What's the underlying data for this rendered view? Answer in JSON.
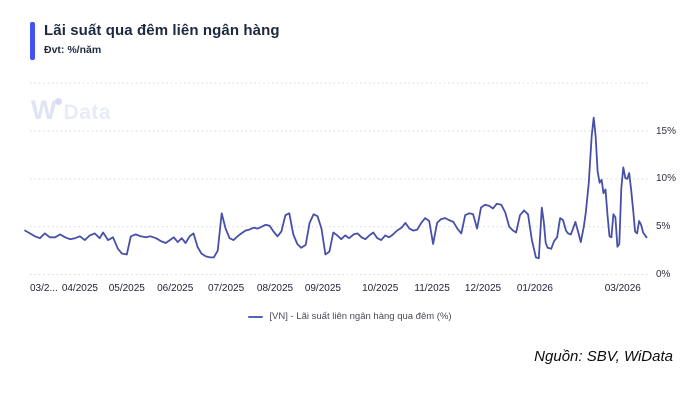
{
  "header": {
    "title": "Lãi suất qua đêm liên ngân hàng",
    "unit": "Đvt: %/năm"
  },
  "watermark": {
    "part1": "W",
    "part2": "Data"
  },
  "legend": {
    "label": "[VN] - Lãi suất liên ngân hàng qua đêm (%)"
  },
  "footer": {
    "source": "Nguồn: SBV, WiData"
  },
  "colors": {
    "accent": "#4154f1",
    "line": "#4750a8",
    "grid": "#d9d9de",
    "legend_marker": "#5560b8"
  },
  "chart_data": {
    "type": "line",
    "title": "Lãi suất qua đêm liên ngân hàng",
    "unit": "%/năm",
    "legend_position": "bottom",
    "grid": "horizontal-dotted",
    "x_axis": {
      "unit": "months since 03/2025",
      "range": [
        -0.15,
        12.55
      ],
      "ticks": [
        {
          "t": 0.0,
          "label": "03/2...",
          "align": "left"
        },
        {
          "t": 1.01,
          "label": "04/2025"
        },
        {
          "t": 1.96,
          "label": "05/2025"
        },
        {
          "t": 2.94,
          "label": "06/2025"
        },
        {
          "t": 3.97,
          "label": "07/2025"
        },
        {
          "t": 4.96,
          "label": "08/2025"
        },
        {
          "t": 5.93,
          "label": "09/2025"
        },
        {
          "t": 7.09,
          "label": "10/2025"
        },
        {
          "t": 8.14,
          "label": "11/2025"
        },
        {
          "t": 9.17,
          "label": "12/2025"
        },
        {
          "t": 10.22,
          "label": "01/2026"
        },
        {
          "t": 12.0,
          "label": "03/2026"
        }
      ]
    },
    "y_axis": {
      "lim": [
        0,
        20
      ],
      "gridlines": [
        0,
        5,
        10,
        15,
        20
      ],
      "ticks": [
        {
          "v": 0,
          "label": "0%"
        },
        {
          "v": 5,
          "label": "5%"
        },
        {
          "v": 10,
          "label": "10%"
        },
        {
          "v": 15,
          "label": "15%"
        }
      ]
    },
    "series": [
      {
        "name": "[VN] - Lãi suất liên ngân hàng qua đêm (%)",
        "color": "#4750a8",
        "points": [
          [
            -0.1,
            4.6
          ],
          [
            0.0,
            4.3
          ],
          [
            0.1,
            4.0
          ],
          [
            0.2,
            3.8
          ],
          [
            0.3,
            4.3
          ],
          [
            0.4,
            3.9
          ],
          [
            0.51,
            3.9
          ],
          [
            0.61,
            4.2
          ],
          [
            0.71,
            3.9
          ],
          [
            0.81,
            3.7
          ],
          [
            0.91,
            3.8
          ],
          [
            1.01,
            4.0
          ],
          [
            1.11,
            3.6
          ],
          [
            1.21,
            4.1
          ],
          [
            1.31,
            4.3
          ],
          [
            1.41,
            3.8
          ],
          [
            1.48,
            4.4
          ],
          [
            1.58,
            3.6
          ],
          [
            1.68,
            3.9
          ],
          [
            1.78,
            2.7
          ],
          [
            1.86,
            2.2
          ],
          [
            1.96,
            2.1
          ],
          [
            2.04,
            4.0
          ],
          [
            2.14,
            4.2
          ],
          [
            2.24,
            4.0
          ],
          [
            2.34,
            3.9
          ],
          [
            2.44,
            4.0
          ],
          [
            2.55,
            3.8
          ],
          [
            2.65,
            3.5
          ],
          [
            2.75,
            3.3
          ],
          [
            2.83,
            3.6
          ],
          [
            2.91,
            3.9
          ],
          [
            2.99,
            3.4
          ],
          [
            3.07,
            3.8
          ],
          [
            3.15,
            3.3
          ],
          [
            3.23,
            4.0
          ],
          [
            3.31,
            4.3
          ],
          [
            3.39,
            2.9
          ],
          [
            3.47,
            2.2
          ],
          [
            3.56,
            1.9
          ],
          [
            3.64,
            1.8
          ],
          [
            3.72,
            1.8
          ],
          [
            3.8,
            2.5
          ],
          [
            3.88,
            6.4
          ],
          [
            3.96,
            4.8
          ],
          [
            4.04,
            3.8
          ],
          [
            4.12,
            3.6
          ],
          [
            4.2,
            4.0
          ],
          [
            4.28,
            4.3
          ],
          [
            4.36,
            4.6
          ],
          [
            4.44,
            4.7
          ],
          [
            4.53,
            4.9
          ],
          [
            4.61,
            4.8
          ],
          [
            4.69,
            5.0
          ],
          [
            4.77,
            5.2
          ],
          [
            4.85,
            5.1
          ],
          [
            4.93,
            4.5
          ],
          [
            5.01,
            4.0
          ],
          [
            5.09,
            4.5
          ],
          [
            5.17,
            6.2
          ],
          [
            5.25,
            6.4
          ],
          [
            5.33,
            4.2
          ],
          [
            5.41,
            3.2
          ],
          [
            5.49,
            2.8
          ],
          [
            5.58,
            3.1
          ],
          [
            5.66,
            5.4
          ],
          [
            5.74,
            6.3
          ],
          [
            5.82,
            6.1
          ],
          [
            5.9,
            4.8
          ],
          [
            5.98,
            2.1
          ],
          [
            6.06,
            2.4
          ],
          [
            6.14,
            4.4
          ],
          [
            6.22,
            4.1
          ],
          [
            6.3,
            3.7
          ],
          [
            6.38,
            4.1
          ],
          [
            6.46,
            3.8
          ],
          [
            6.55,
            4.2
          ],
          [
            6.63,
            4.3
          ],
          [
            6.71,
            3.9
          ],
          [
            6.79,
            3.7
          ],
          [
            6.87,
            4.1
          ],
          [
            6.95,
            4.4
          ],
          [
            7.03,
            3.8
          ],
          [
            7.11,
            3.6
          ],
          [
            7.19,
            4.1
          ],
          [
            7.27,
            3.9
          ],
          [
            7.35,
            4.2
          ],
          [
            7.43,
            4.6
          ],
          [
            7.52,
            4.9
          ],
          [
            7.6,
            5.4
          ],
          [
            7.68,
            4.8
          ],
          [
            7.76,
            4.6
          ],
          [
            7.84,
            4.7
          ],
          [
            7.92,
            5.4
          ],
          [
            8.0,
            5.9
          ],
          [
            8.08,
            5.6
          ],
          [
            8.16,
            3.2
          ],
          [
            8.24,
            5.4
          ],
          [
            8.32,
            5.8
          ],
          [
            8.4,
            5.9
          ],
          [
            8.48,
            5.7
          ],
          [
            8.57,
            5.5
          ],
          [
            8.65,
            4.8
          ],
          [
            8.73,
            4.3
          ],
          [
            8.81,
            6.2
          ],
          [
            8.89,
            6.4
          ],
          [
            8.97,
            6.3
          ],
          [
            9.05,
            4.8
          ],
          [
            9.13,
            7.0
          ],
          [
            9.21,
            7.3
          ],
          [
            9.29,
            7.2
          ],
          [
            9.37,
            6.9
          ],
          [
            9.45,
            7.4
          ],
          [
            9.54,
            7.3
          ],
          [
            9.62,
            6.5
          ],
          [
            9.7,
            5.0
          ],
          [
            9.78,
            4.6
          ],
          [
            9.84,
            4.4
          ],
          [
            9.92,
            6.2
          ],
          [
            10.0,
            6.7
          ],
          [
            10.08,
            6.3
          ],
          [
            10.16,
            3.6
          ],
          [
            10.24,
            1.8
          ],
          [
            10.3,
            1.7
          ],
          [
            10.36,
            7.0
          ],
          [
            10.4,
            5.5
          ],
          [
            10.44,
            3.3
          ],
          [
            10.48,
            2.8
          ],
          [
            10.55,
            2.7
          ],
          [
            10.61,
            3.5
          ],
          [
            10.67,
            3.9
          ],
          [
            10.73,
            5.9
          ],
          [
            10.79,
            5.7
          ],
          [
            10.85,
            4.6
          ],
          [
            10.89,
            4.3
          ],
          [
            10.95,
            4.2
          ],
          [
            11.0,
            4.9
          ],
          [
            11.04,
            5.5
          ],
          [
            11.1,
            4.4
          ],
          [
            11.15,
            3.4
          ],
          [
            11.21,
            5.0
          ],
          [
            11.25,
            6.5
          ],
          [
            11.31,
            9.5
          ],
          [
            11.37,
            14.5
          ],
          [
            11.41,
            16.4
          ],
          [
            11.45,
            14.5
          ],
          [
            11.49,
            10.8
          ],
          [
            11.53,
            9.6
          ],
          [
            11.57,
            9.9
          ],
          [
            11.61,
            8.5
          ],
          [
            11.65,
            8.9
          ],
          [
            11.69,
            6.2
          ],
          [
            11.73,
            4.0
          ],
          [
            11.77,
            3.9
          ],
          [
            11.81,
            6.3
          ],
          [
            11.85,
            6.0
          ],
          [
            11.89,
            2.9
          ],
          [
            11.93,
            3.2
          ],
          [
            11.97,
            9.0
          ],
          [
            12.01,
            11.2
          ],
          [
            12.05,
            10.1
          ],
          [
            12.09,
            10.0
          ],
          [
            12.13,
            10.6
          ],
          [
            12.17,
            8.8
          ],
          [
            12.21,
            6.7
          ],
          [
            12.25,
            4.5
          ],
          [
            12.29,
            4.3
          ],
          [
            12.33,
            5.6
          ],
          [
            12.37,
            5.2
          ],
          [
            12.41,
            4.4
          ],
          [
            12.48,
            3.9
          ]
        ]
      }
    ]
  }
}
